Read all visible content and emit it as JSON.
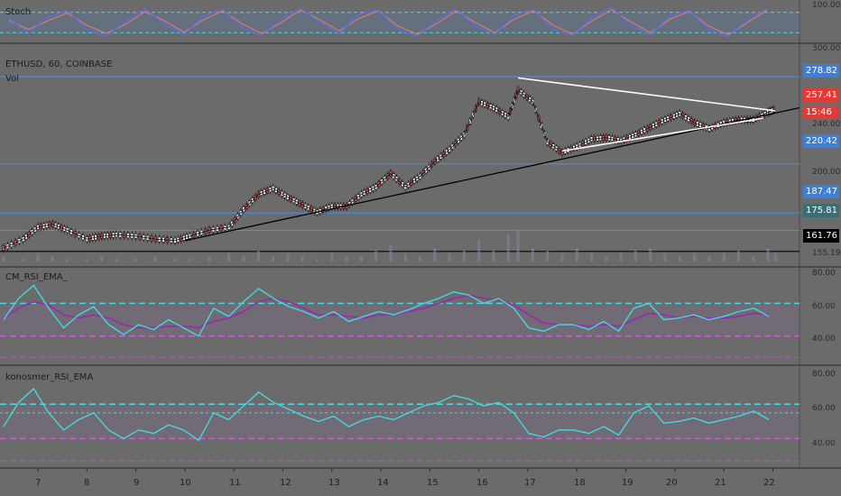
{
  "colors": {
    "background": "#6b6b6b",
    "level_line": "#4a90e2",
    "price_badge_blue": "#3d7fd8",
    "price_badge_red": "#e53935",
    "teal_badge": "#3a6e72",
    "rsi_line": "#46d7df",
    "ema_line": "#9c27b0",
    "triangle": "#ffffff",
    "trendline": "#000000"
  },
  "chart_data": [
    {
      "type": "line",
      "panel": "stoch",
      "title": "Stoch",
      "y_axis_labels": [
        "100.000"
      ],
      "series": [
        {
          "name": "",
          "values": [
            60,
            20,
            65,
            85,
            30,
            10,
            55,
            90,
            45,
            15,
            70,
            88,
            35,
            12,
            60,
            92,
            50,
            18,
            75,
            86,
            30,
            10,
            55,
            90,
            40,
            15,
            72,
            88,
            30,
            12,
            65,
            95,
            42,
            14,
            70,
            85,
            30,
            8,
            60,
            90
          ]
        },
        {
          "name": "",
          "values": [
            55,
            30,
            55,
            78,
            42,
            18,
            45,
            82,
            55,
            22,
            58,
            84,
            46,
            18,
            50,
            86,
            58,
            25,
            62,
            84,
            40,
            16,
            46,
            84,
            50,
            20,
            60,
            84,
            42,
            16,
            55,
            88,
            52,
            20,
            60,
            82,
            40,
            14,
            50,
            86
          ]
        }
      ]
    },
    {
      "type": "line",
      "panel": "price",
      "title": "ETHUSD, 60, COINBASE",
      "subtitle": "Vol",
      "y_axis_labels": [
        "300.00",
        "240.00",
        "200.00",
        "155.19"
      ],
      "ylim": [
        155,
        300
      ],
      "x_tick_labels": [
        "7",
        "8",
        "9",
        "10",
        "11",
        "12",
        "13",
        "14",
        "15",
        "16",
        "17",
        "18",
        "19",
        "20",
        "21",
        "22"
      ],
      "price_levels": [
        {
          "label": "278.82",
          "value": 278.82,
          "style": "blue"
        },
        {
          "label": "257.41",
          "value": 257.41,
          "style": "red"
        },
        {
          "label": "15:46",
          "value": 251.5,
          "style": "red"
        },
        {
          "label": "220.42",
          "value": 220.42,
          "style": "blue"
        },
        {
          "label": "187.47",
          "value": 187.47,
          "style": "blue"
        },
        {
          "label": "175.81",
          "value": 175.81,
          "style": "teal"
        },
        {
          "label": "161.76",
          "value": 161.76,
          "style": "black"
        }
      ],
      "series": [
        {
          "name": "",
          "x": [
            6.3,
            6.7,
            7.0,
            7.3,
            7.6,
            8.0,
            8.3,
            8.6,
            9.0,
            9.4,
            9.8,
            10.1,
            10.5,
            10.9,
            11.2,
            11.5,
            11.8,
            12.1,
            12.4,
            12.7,
            13.0,
            13.3,
            13.6,
            13.9,
            14.2,
            14.5,
            14.8,
            15.1,
            15.4,
            15.7,
            16.0,
            16.3,
            16.6,
            16.8,
            17.1,
            17.4,
            17.7,
            18.0,
            18.3,
            18.6,
            18.9,
            19.2,
            19.5,
            19.8,
            20.1,
            20.4,
            20.7,
            21.0,
            21.3,
            21.6,
            21.9,
            22.05
          ],
          "values": [
            164,
            170,
            178,
            180,
            176,
            170,
            172,
            173,
            172,
            170,
            169,
            172,
            176,
            178,
            190,
            200,
            204,
            198,
            193,
            188,
            192,
            192,
            200,
            205,
            214,
            205,
            212,
            222,
            230,
            240,
            262,
            258,
            252,
            270,
            262,
            235,
            228,
            232,
            237,
            238,
            236,
            240,
            245,
            250,
            254,
            248,
            244,
            248,
            250,
            250,
            255,
            257
          ]
        }
      ],
      "volume": [
        2,
        1,
        3,
        2,
        1,
        1,
        2,
        1,
        1,
        2,
        1,
        1,
        2,
        3,
        2,
        4,
        2,
        3,
        2,
        1,
        3,
        2,
        2,
        4,
        6,
        3,
        2,
        5,
        3,
        4,
        8,
        4,
        10,
        12,
        5,
        4,
        3,
        5,
        3,
        2,
        3,
        4,
        5,
        3,
        2,
        3,
        2,
        3,
        4,
        2,
        5,
        3
      ]
    },
    {
      "type": "line",
      "panel": "cm_rsi",
      "title": "CM_RSI_EMA_",
      "y_axis_labels": [
        "80.00",
        "60.00",
        "40.00"
      ],
      "ylim": [
        30,
        85
      ],
      "bands": [
        65,
        45
      ],
      "series": [
        {
          "name": "",
          "values": [
            55,
            68,
            76,
            62,
            50,
            58,
            63,
            52,
            46,
            52,
            49,
            55,
            50,
            45,
            62,
            57,
            66,
            74,
            68,
            63,
            60,
            56,
            60,
            54,
            57,
            60,
            58,
            61,
            65,
            68,
            72,
            70,
            65,
            68,
            62,
            50,
            48,
            52,
            52,
            49,
            54,
            48,
            62,
            65,
            55,
            56,
            58,
            55,
            57,
            60,
            62,
            57
          ]
        },
        {
          "name": "",
          "values": [
            56,
            62,
            66,
            64,
            58,
            56,
            58,
            56,
            52,
            50,
            50,
            51,
            51,
            50,
            54,
            56,
            60,
            66,
            68,
            66,
            62,
            58,
            58,
            57,
            56,
            58,
            58,
            60,
            62,
            65,
            68,
            70,
            68,
            67,
            64,
            58,
            53,
            52,
            52,
            51,
            52,
            51,
            55,
            59,
            58,
            56,
            57,
            56,
            56,
            57,
            59,
            58
          ]
        }
      ]
    },
    {
      "type": "line",
      "panel": "konosmer_rsi",
      "title": "konosmer_RSI_EMA",
      "y_axis_labels": [
        "80.00",
        "60.00",
        "40.00"
      ],
      "ylim": [
        30,
        85
      ],
      "bands": [
        65,
        60,
        45
      ],
      "series": [
        {
          "name": "",
          "values": [
            52,
            66,
            74,
            60,
            50,
            56,
            60,
            50,
            45,
            50,
            48,
            53,
            50,
            44,
            60,
            56,
            64,
            72,
            66,
            62,
            58,
            55,
            58,
            52,
            56,
            58,
            56,
            60,
            64,
            66,
            70,
            68,
            64,
            66,
            60,
            48,
            46,
            50,
            50,
            48,
            52,
            47,
            60,
            64,
            54,
            55,
            57,
            54,
            56,
            58,
            61,
            56
          ]
        }
      ]
    }
  ]
}
